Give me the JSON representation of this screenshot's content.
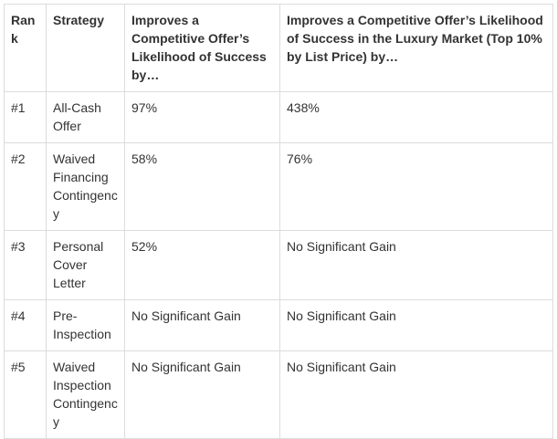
{
  "table": {
    "headers": {
      "rank": "Rank",
      "strategy": "Strategy",
      "general": "Improves a Competitive Offer’s Likelihood of Success by…",
      "luxury": "Improves a Competitive Offer’s Likelihood of Success in the Luxury Market (Top 10% by List Price) by…"
    },
    "rows": [
      {
        "rank": "#1",
        "strategy": "All-Cash Offer",
        "general": "97%",
        "luxury": "438%"
      },
      {
        "rank": "#2",
        "strategy": "Waived Financing Contingency",
        "general": "58%",
        "luxury": "76%"
      },
      {
        "rank": "#3",
        "strategy": "Personal Cover Letter",
        "general": "52%",
        "luxury": "No Significant Gain"
      },
      {
        "rank": "#4",
        "strategy": "Pre-Inspection",
        "general": "No Significant Gain",
        "luxury": "No Significant Gain"
      },
      {
        "rank": "#5",
        "strategy": "Waived Inspection Contingency",
        "general": "No Significant Gain",
        "luxury": "No Significant Gain"
      }
    ]
  }
}
